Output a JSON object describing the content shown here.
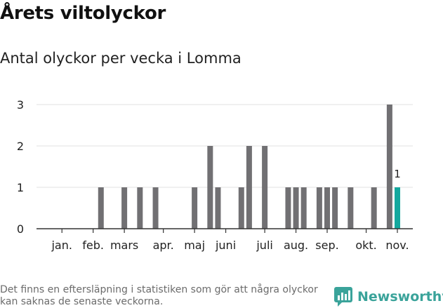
{
  "header": {
    "title": "Årets viltolyckor",
    "subtitle": "Antal olyckor per vecka i Lomma"
  },
  "footer": {
    "note": "Det finns en eftersläpning i statistiken som gör att några olyckor kan saknas de senaste veckorna.",
    "brand": "Newsworthy"
  },
  "colors": {
    "bar": "#717073",
    "highlight": "#13a89e",
    "axis": "#333333",
    "grid": "#e2e2e2",
    "brand": "#3aa39a"
  },
  "chart_data": {
    "type": "bar",
    "title": "Årets viltolyckor",
    "subtitle": "Antal olyckor per vecka i Lomma",
    "xlabel": "",
    "ylabel": "",
    "ylim": [
      0,
      3
    ],
    "yticks": [
      0,
      1,
      2,
      3
    ],
    "xlim_weeks": [
      1,
      46
    ],
    "month_ticks": [
      {
        "label": "jan.",
        "week": 3
      },
      {
        "label": "feb.",
        "week": 7
      },
      {
        "label": "mars",
        "week": 11
      },
      {
        "label": "apr.",
        "week": 16
      },
      {
        "label": "maj",
        "week": 20
      },
      {
        "label": "juni",
        "week": 24
      },
      {
        "label": "juli",
        "week": 29
      },
      {
        "label": "aug.",
        "week": 33
      },
      {
        "label": "sep.",
        "week": 37
      },
      {
        "label": "okt.",
        "week": 42
      },
      {
        "label": "nov.",
        "week": 46
      }
    ],
    "x": [
      8,
      11,
      13,
      15,
      20,
      22,
      23,
      26,
      27,
      29,
      32,
      33,
      34,
      36,
      37,
      38,
      40,
      43,
      45,
      46
    ],
    "values": [
      1,
      1,
      1,
      1,
      1,
      2,
      1,
      1,
      2,
      2,
      1,
      1,
      1,
      1,
      1,
      1,
      1,
      1,
      3,
      1
    ],
    "highlight": {
      "week": 46,
      "value": 1,
      "label": "1"
    },
    "grid": "horizontal"
  }
}
